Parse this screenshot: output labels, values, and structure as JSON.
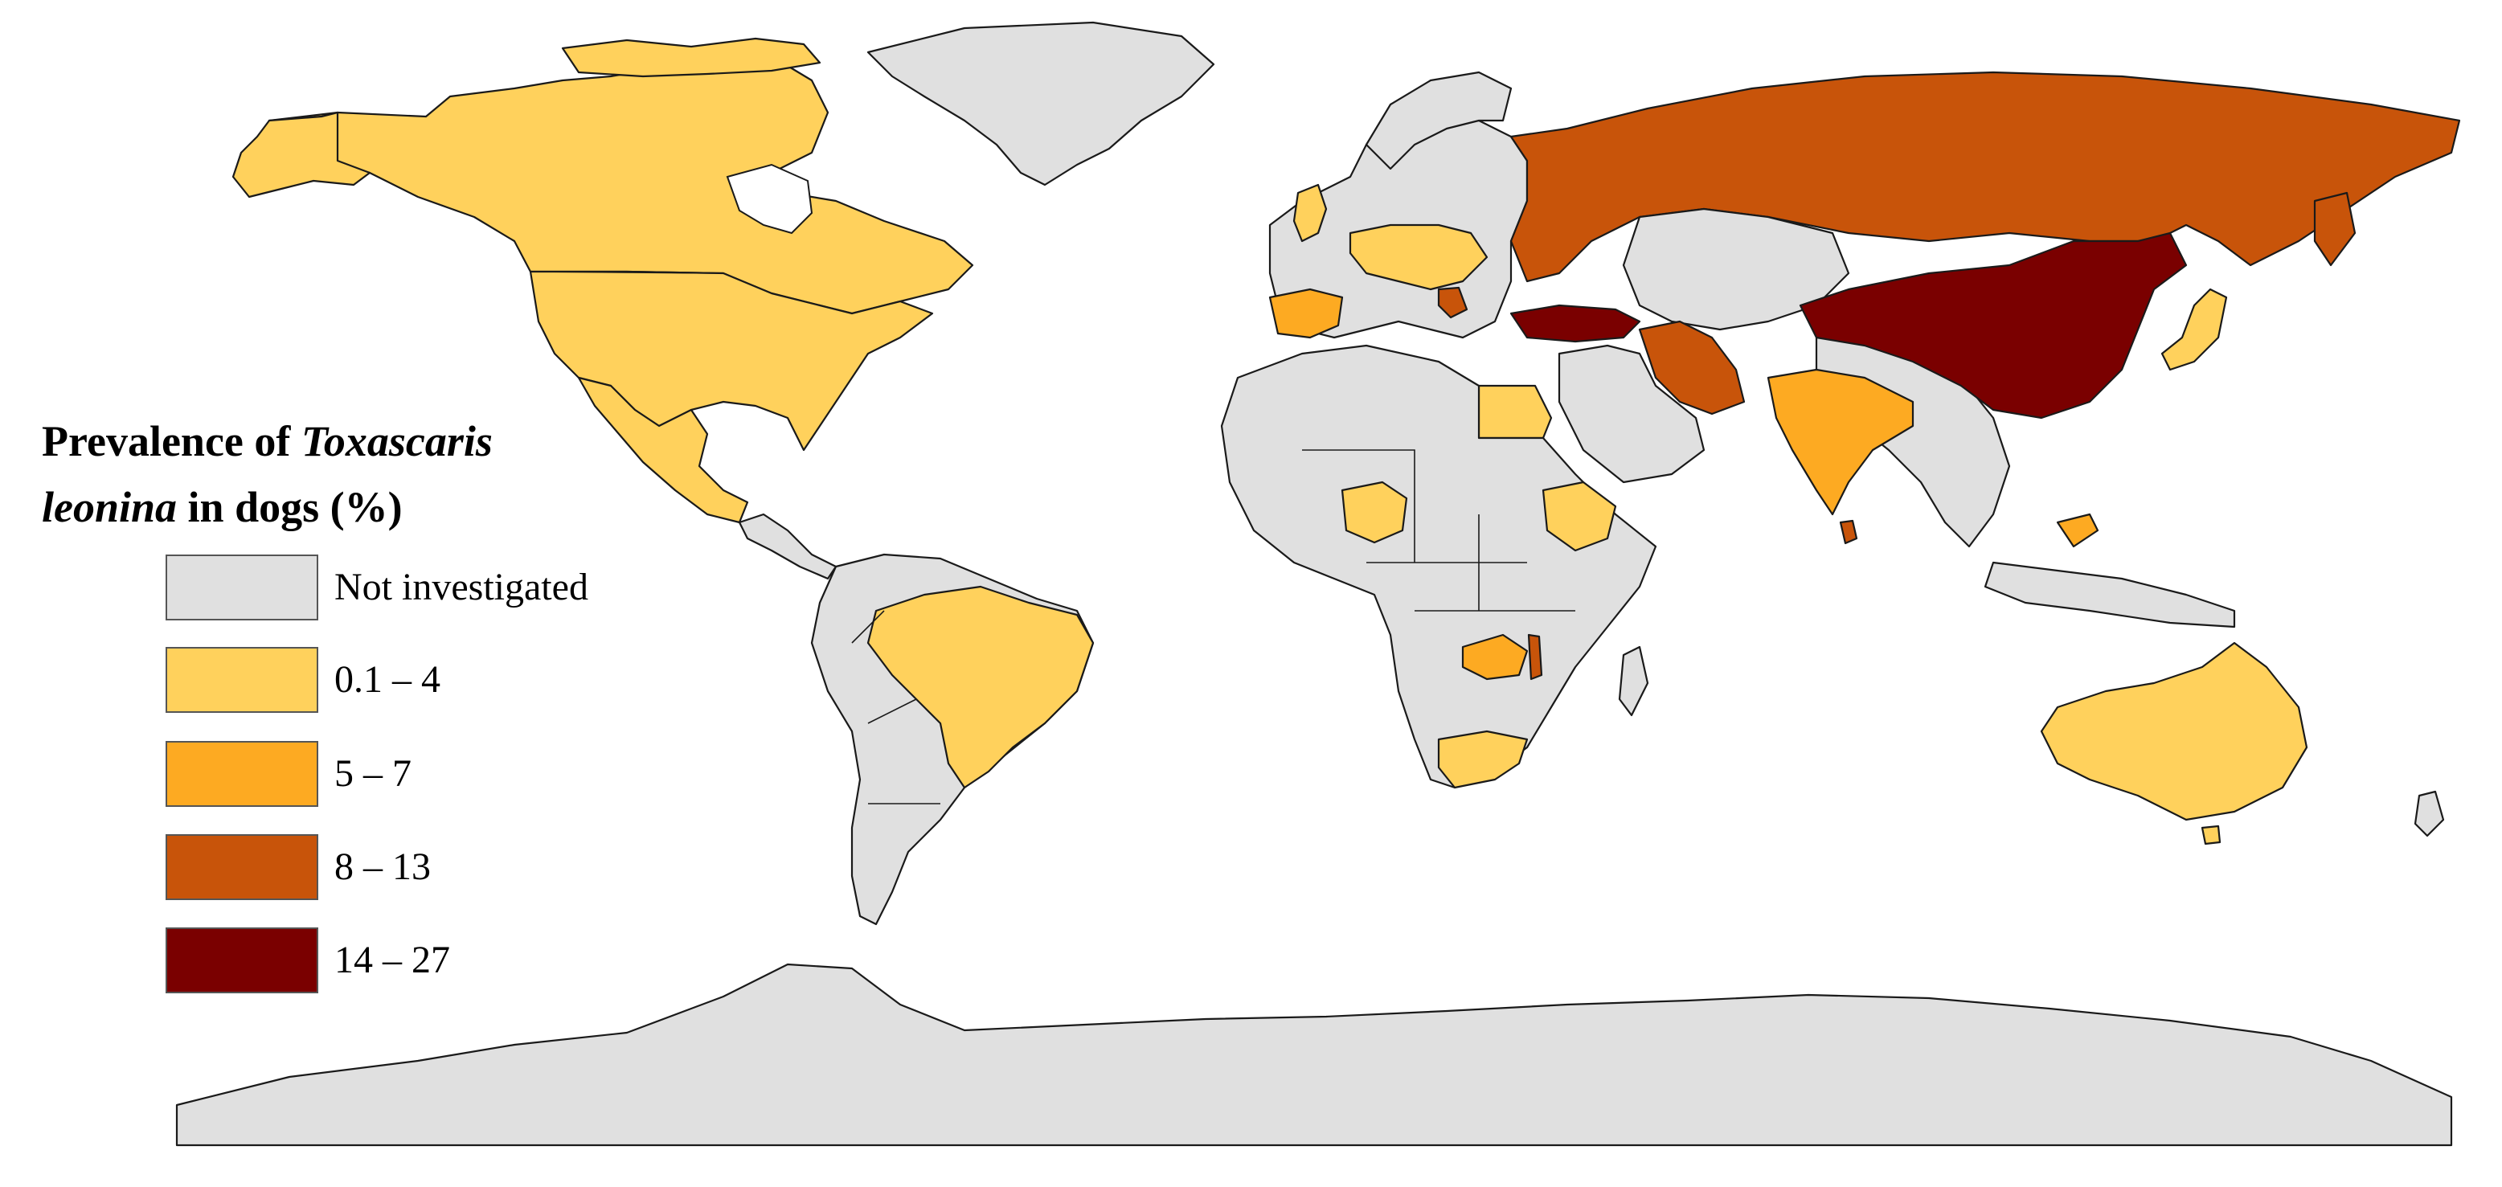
{
  "legend": {
    "title_part1": "Prevalence of ",
    "title_italic1": "Toxascaris",
    "title_italic2": "leonina",
    "title_part2": " in dogs (%)",
    "items": [
      {
        "label": "Not investigated",
        "color": "#e0e0e0"
      },
      {
        "label": "0.1 – 4",
        "color": "#ffd15c"
      },
      {
        "label": "5 – 7",
        "color": "#fdaa22"
      },
      {
        "label": "8 – 13",
        "color": "#c8540a"
      },
      {
        "label": "14 – 27",
        "color": "#7a0000"
      }
    ]
  },
  "regions": [
    {
      "name": "Greenland",
      "class": "Not investigated"
    },
    {
      "name": "Canada",
      "class": "0.1 – 4"
    },
    {
      "name": "United States",
      "class": "0.1 – 4"
    },
    {
      "name": "Mexico",
      "class": "0.1 – 4"
    },
    {
      "name": "Brazil",
      "class": "0.1 – 4"
    },
    {
      "name": "Russia",
      "class": "8 – 13"
    },
    {
      "name": "China",
      "class": "14 – 27"
    },
    {
      "name": "Turkey",
      "class": "14 – 27"
    },
    {
      "name": "Iran",
      "class": "8 – 13"
    },
    {
      "name": "India",
      "class": "5 – 7"
    },
    {
      "name": "Sri Lanka",
      "class": "8 – 13"
    },
    {
      "name": "Egypt",
      "class": "0.1 – 4"
    },
    {
      "name": "Nigeria",
      "class": "0.1 – 4"
    },
    {
      "name": "Ethiopia",
      "class": "0.1 – 4"
    },
    {
      "name": "Zambia",
      "class": "5 – 7"
    },
    {
      "name": "Malawi",
      "class": "8 – 13"
    },
    {
      "name": "South Africa",
      "class": "0.1 – 4"
    },
    {
      "name": "Spain",
      "class": "5 – 7"
    },
    {
      "name": "Japan",
      "class": "0.1 – 4"
    },
    {
      "name": "Australia",
      "class": "0.1 – 4"
    },
    {
      "name": "Antarctica",
      "class": "Not investigated"
    }
  ]
}
